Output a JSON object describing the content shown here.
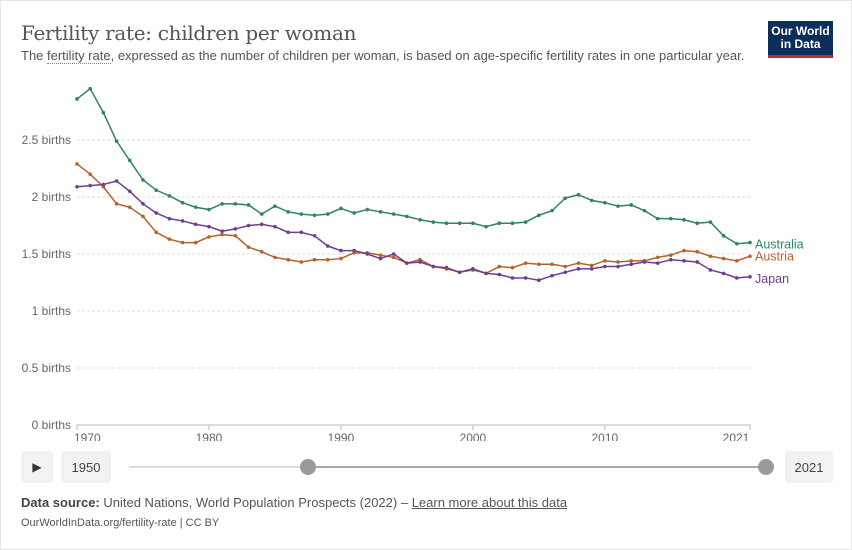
{
  "header": {
    "title": "Fertility rate: children per woman",
    "subtitle_pre": "The ",
    "subtitle_link": "fertility rate",
    "subtitle_post": ", expressed as the number of children per woman, is based on age-specific fertility rates in one particular year.",
    "logo": "Our World in Data"
  },
  "controls": {
    "play_icon": "play-icon",
    "start_year": "1950",
    "end_year": "2021",
    "range_start_fraction": 0.28,
    "range_end_fraction": 1.0
  },
  "footer": {
    "source_label": "Data source:",
    "source_text": " United Nations, World Population Prospects (2022) – ",
    "learn_more": "Learn more about this data",
    "url": "OurWorldInData.org/fertility-rate | CC BY"
  },
  "chart_data": {
    "type": "line",
    "title": "Fertility rate: children per woman",
    "xlim": [
      1970,
      2021
    ],
    "ylim": [
      0,
      2.95
    ],
    "x_ticks": [
      "1970",
      "1980",
      "1990",
      "2000",
      "2010",
      "2021"
    ],
    "y_ticks": [
      {
        "v": 0,
        "label": "0 births"
      },
      {
        "v": 0.5,
        "label": "0.5 births"
      },
      {
        "v": 1,
        "label": "1 births"
      },
      {
        "v": 1.5,
        "label": "1.5 births"
      },
      {
        "v": 2,
        "label": "2 births"
      },
      {
        "v": 2.5,
        "label": "2.5 births"
      }
    ],
    "grid": "horizontal",
    "legend": "right-end labels",
    "x": [
      1970,
      1971,
      1972,
      1973,
      1974,
      1975,
      1976,
      1977,
      1978,
      1979,
      1980,
      1981,
      1982,
      1983,
      1984,
      1985,
      1986,
      1987,
      1988,
      1989,
      1990,
      1991,
      1992,
      1993,
      1994,
      1995,
      1996,
      1997,
      1998,
      1999,
      2000,
      2001,
      2002,
      2003,
      2004,
      2005,
      2006,
      2007,
      2008,
      2009,
      2010,
      2011,
      2012,
      2013,
      2014,
      2015,
      2016,
      2017,
      2018,
      2019,
      2020,
      2021
    ],
    "series": [
      {
        "name": "Australia",
        "color": "#2e8466",
        "values": [
          2.86,
          2.95,
          2.74,
          2.49,
          2.32,
          2.15,
          2.06,
          2.01,
          1.95,
          1.91,
          1.89,
          1.94,
          1.94,
          1.93,
          1.85,
          1.92,
          1.87,
          1.85,
          1.84,
          1.85,
          1.9,
          1.86,
          1.89,
          1.87,
          1.85,
          1.83,
          1.8,
          1.78,
          1.77,
          1.77,
          1.77,
          1.74,
          1.77,
          1.77,
          1.78,
          1.84,
          1.88,
          1.99,
          2.02,
          1.97,
          1.95,
          1.92,
          1.93,
          1.88,
          1.81,
          1.81,
          1.8,
          1.77,
          1.78,
          1.66,
          1.59,
          1.6
        ]
      },
      {
        "name": "Austria",
        "color": "#b5622b",
        "values": [
          2.29,
          2.2,
          2.09,
          1.94,
          1.91,
          1.83,
          1.69,
          1.63,
          1.6,
          1.6,
          1.65,
          1.67,
          1.66,
          1.56,
          1.52,
          1.47,
          1.45,
          1.43,
          1.45,
          1.45,
          1.46,
          1.51,
          1.51,
          1.49,
          1.47,
          1.42,
          1.45,
          1.39,
          1.37,
          1.34,
          1.36,
          1.33,
          1.39,
          1.38,
          1.42,
          1.41,
          1.41,
          1.39,
          1.42,
          1.4,
          1.44,
          1.43,
          1.44,
          1.44,
          1.47,
          1.49,
          1.53,
          1.52,
          1.48,
          1.46,
          1.44,
          1.48
        ]
      },
      {
        "name": "Japan",
        "color": "#6d3e91",
        "values": [
          2.09,
          2.1,
          2.11,
          2.14,
          2.05,
          1.94,
          1.86,
          1.81,
          1.79,
          1.76,
          1.74,
          1.7,
          1.72,
          1.75,
          1.76,
          1.74,
          1.69,
          1.69,
          1.66,
          1.57,
          1.53,
          1.53,
          1.5,
          1.46,
          1.5,
          1.42,
          1.43,
          1.39,
          1.38,
          1.34,
          1.37,
          1.33,
          1.32,
          1.29,
          1.29,
          1.27,
          1.31,
          1.34,
          1.37,
          1.37,
          1.39,
          1.39,
          1.41,
          1.43,
          1.42,
          1.45,
          1.44,
          1.43,
          1.36,
          1.33,
          1.29,
          1.3
        ]
      }
    ]
  }
}
